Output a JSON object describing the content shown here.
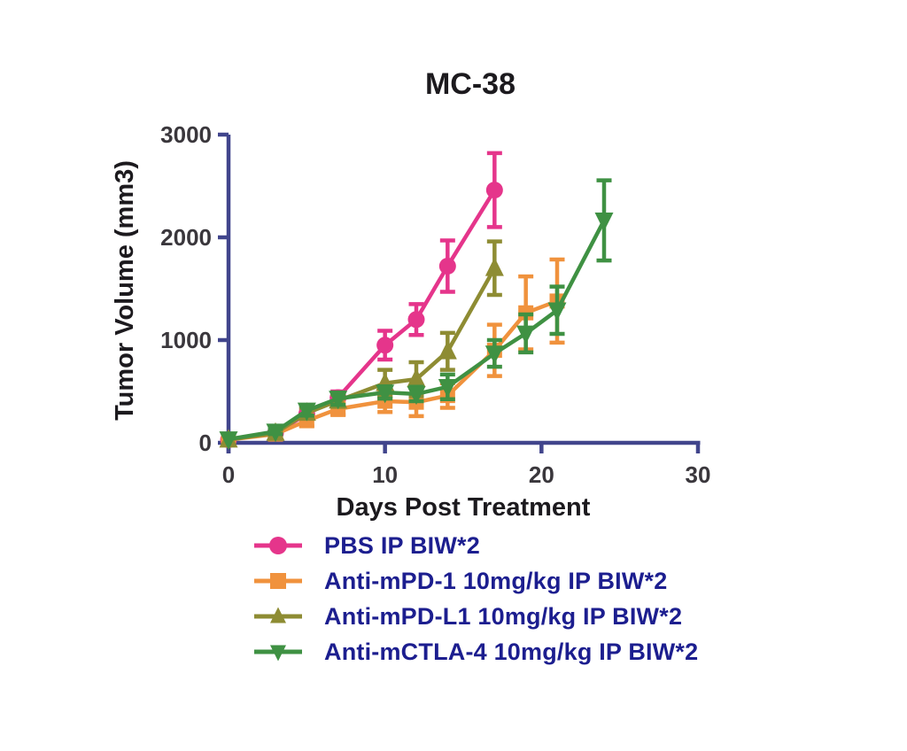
{
  "title": "MC-38",
  "chart_data": {
    "type": "line",
    "title": "MC-38",
    "xlabel": "Days Post Treatment",
    "ylabel": "Tumor Volume (mm3)",
    "xlim": [
      0,
      30
    ],
    "ylim": [
      0,
      3000
    ],
    "xticks": [
      0,
      10,
      20,
      30
    ],
    "yticks": [
      0,
      1000,
      2000,
      3000
    ],
    "grid": false,
    "legend_position": "bottom-left",
    "axis_color": "#41458c",
    "tick_label_color": "#3a373c",
    "title_color": "#1c1a1e",
    "legend_text_color": "#1c1e8f",
    "series": [
      {
        "name": "PBS IP BIW*2",
        "color": "#e5358b",
        "marker": "circle",
        "x": [
          0,
          3,
          5,
          7,
          10,
          12,
          14,
          17
        ],
        "y": [
          30,
          95,
          280,
          440,
          950,
          1200,
          1720,
          2460
        ],
        "yerr": [
          10,
          25,
          45,
          60,
          140,
          150,
          250,
          360
        ]
      },
      {
        "name": "Anti-mPD-1 10mg/kg IP BIW*2",
        "color": "#f0923d",
        "marker": "square",
        "x": [
          0,
          3,
          5,
          7,
          10,
          12,
          14,
          17,
          19,
          21
        ],
        "y": [
          30,
          85,
          215,
          330,
          405,
          395,
          460,
          900,
          1265,
          1380
        ],
        "yerr": [
          10,
          25,
          50,
          60,
          105,
          135,
          120,
          250,
          355,
          405
        ]
      },
      {
        "name": "Anti-mPD-L1 10mg/kg IP BIW*2",
        "color": "#8e8c33",
        "marker": "triangle-up",
        "x": [
          0,
          3,
          5,
          7,
          10,
          12,
          14,
          17
        ],
        "y": [
          30,
          95,
          290,
          410,
          580,
          620,
          890,
          1700
        ],
        "yerr": [
          10,
          25,
          50,
          60,
          130,
          165,
          180,
          260
        ]
      },
      {
        "name": "Anti-mCTLA-4 10mg/kg IP BIW*2",
        "color": "#3f9143",
        "marker": "triangle-down",
        "x": [
          0,
          3,
          5,
          7,
          10,
          12,
          14,
          17,
          19,
          21,
          24
        ],
        "y": [
          35,
          110,
          315,
          430,
          490,
          475,
          545,
          870,
          1065,
          1290,
          2165
        ],
        "yerr": [
          10,
          25,
          50,
          60,
          60,
          70,
          120,
          130,
          185,
          230,
          390
        ]
      }
    ]
  }
}
